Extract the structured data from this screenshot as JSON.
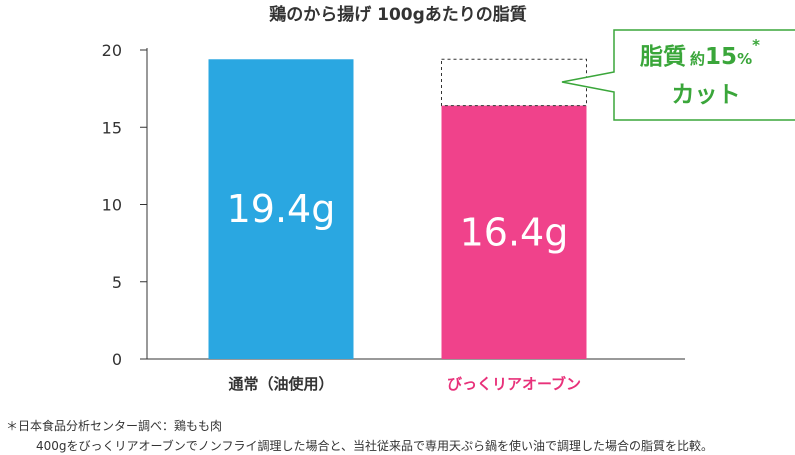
{
  "chart_data": {
    "type": "bar",
    "title": "鶏のから揚げ 100gあたりの脂質",
    "categories": [
      "通常（油使用）",
      "びっくリアオーブン"
    ],
    "values": [
      19.4,
      16.4
    ],
    "value_labels": [
      "19.4g",
      "16.4g"
    ],
    "ylim": [
      0,
      20
    ],
    "yticks": [
      0,
      5,
      10,
      15,
      20
    ],
    "grid": false,
    "reference_value": 19.4,
    "colors": {
      "bar_normal": "#2aa7e1",
      "bar_oven": "#f0428b",
      "category_oven_label": "#e8317a",
      "callout": "#3aa63a"
    },
    "annotation": {
      "line1_main": "脂質",
      "line1_small": "約",
      "line1_number": "15",
      "line1_unit": "%",
      "asterisk": "*",
      "line2": "カット"
    }
  },
  "notes": {
    "line1": "＊日本食品分析センター調べ：鶏もも肉",
    "line2": "400gをびっくリアオーブンでノンフライ調理した場合と、当社従来品で専用天ぷら鍋を使い油で調理した場合の脂質を比較。"
  }
}
